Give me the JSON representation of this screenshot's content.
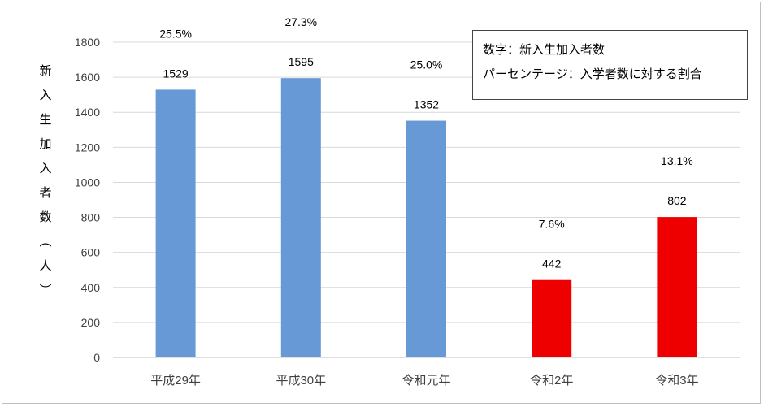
{
  "chart_data": {
    "type": "bar",
    "categories": [
      "平成29年",
      "平成30年",
      "令和元年",
      "令和2年",
      "令和3年"
    ],
    "values": [
      1529,
      1595,
      1352,
      442,
      802
    ],
    "percentages": [
      "25.5%",
      "27.3%",
      "25.0%",
      "7.6%",
      "13.1%"
    ],
    "bar_colors": [
      "#6699d5",
      "#6699d5",
      "#6699d5",
      "#ee0000",
      "#ee0000"
    ],
    "ylabel": "新入生加入者数（人）",
    "ylim": [
      0,
      1800
    ],
    "yticks": [
      0,
      200,
      400,
      600,
      800,
      1000,
      1200,
      1400,
      1600,
      1800
    ],
    "grid": true,
    "legend_position": "top-right",
    "legend_lines": [
      "数字：新入生加入者数",
      "パーセンテージ：入学者数に対する割合"
    ]
  },
  "ylabel_chars": [
    "新",
    "入",
    "生",
    "加",
    "入",
    "者",
    "数",
    "︵",
    "人",
    "︶"
  ]
}
